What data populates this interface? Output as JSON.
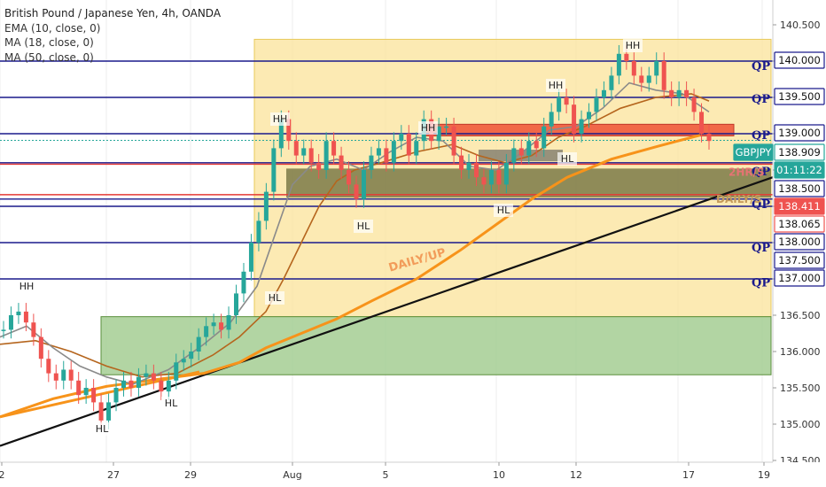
{
  "legend": {
    "title": "British Pound / Japanese Yen, 4h, OANDA",
    "ema": "EMA (10, close, 0)",
    "ma18": "MA (18, close, 0)",
    "ma50": "MA (50, close, 0)"
  },
  "chart_data": {
    "type": "candlestick",
    "symbol": "GBPJPY",
    "timeframe": "4h",
    "ylim": [
      134.4,
      140.8
    ],
    "price_ticks": [
      134.5,
      135.0,
      135.5,
      136.0,
      136.5,
      137.0,
      137.5,
      138.0,
      138.5,
      139.0,
      139.5,
      140.0,
      140.5
    ],
    "price_tick_labels": [
      "134.500",
      "135.000",
      "135.500",
      "136.000",
      "136.500",
      "137.000",
      "137.500",
      "138.000",
      "138.500",
      "139.000",
      "139.500",
      "140.000",
      "140.500"
    ],
    "x_ticks": [
      "2",
      "27",
      "29",
      "Aug",
      "5",
      "10",
      "12",
      "17",
      "19"
    ],
    "qp_levels": [
      140.0,
      139.5,
      139.0,
      138.5,
      138.1,
      138.0,
      137.5,
      137.0
    ],
    "qp_label": "QP",
    "price_badges": [
      {
        "text": "140.000",
        "value": 140.0,
        "style": "outline"
      },
      {
        "text": "139.500",
        "value": 139.5,
        "style": "outline"
      },
      {
        "text": "139.000",
        "value": 139.0,
        "style": "outline"
      },
      {
        "text": "GBPJPY",
        "value": 138.909,
        "style": "green"
      },
      {
        "text": "138.909",
        "value": 138.909,
        "style": "green-outline"
      },
      {
        "text": "01:11:22",
        "value": 138.7,
        "style": "green"
      },
      {
        "text": "138.500",
        "value": 138.5,
        "style": "outline"
      },
      {
        "text": "138.411",
        "value": 138.411,
        "style": "red"
      },
      {
        "text": "138.065",
        "value": 138.065,
        "style": "red-outline"
      },
      {
        "text": "138.000",
        "value": 138.0,
        "style": "outline"
      },
      {
        "text": "137.500",
        "value": 137.5,
        "style": "outline"
      },
      {
        "text": "137.000",
        "value": 137.0,
        "style": "outline"
      }
    ],
    "annotations": [
      "HH",
      "HH",
      "HH",
      "HH",
      "HL",
      "HL",
      "HL",
      "HL",
      "HL",
      "HL",
      "2HR/S",
      "DAILY/S",
      "DAILY/UP"
    ],
    "colors": {
      "ema": "#3a4f8a",
      "ma18": "#b5651d",
      "ma50": "#f7931a",
      "up": "#26a69a",
      "down": "#ef5350",
      "qp_line": "#1a1a8c",
      "zone_yellow": "#fbe39a",
      "zone_green": "#9fcb8c",
      "zone_red": "#f05a3c",
      "daily_support": "#6b6b3a"
    }
  }
}
